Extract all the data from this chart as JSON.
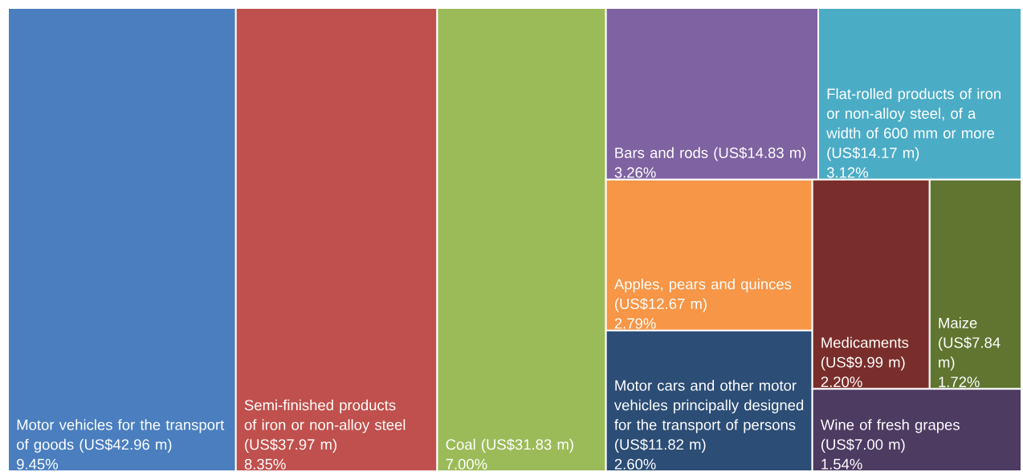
{
  "chart_data": {
    "type": "other",
    "categories": [
      "Motor vehicles for the transport of goods (US$42.96 m)",
      "Semi-finished products of iron or non-alloy steel (US$37.97 m)",
      "Coal (US$31.83 m)",
      "Bars and rods (US$14.83 m)",
      "Flat-rolled products of iron or non-alloy steel, of a width of 600 mm or more (US$14.17 m)",
      "Apples, pears and quinces (US$12.67 m)",
      "Motor cars and other motor vehicles principally designed for the transport of persons (US$11.82 m)",
      "Medicaments (US$9.99 m)",
      "Maize (US$7.84 m)",
      "Wine of fresh grapes (US$7.00 m)"
    ],
    "values": [
      9.45,
      8.35,
      7.0,
      3.26,
      3.12,
      2.79,
      2.6,
      2.2,
      1.72,
      1.54
    ],
    "value_labels": [
      "9.45%",
      "8.35%",
      "7.00%",
      "3.26%",
      "3.12%",
      "2.79%",
      "2.60%",
      "2.20%",
      "1.72%",
      "1.54%"
    ],
    "colors": [
      "#4a7ebf",
      "#c0504d",
      "#9bbb59",
      "#7f62a1",
      "#4bacc6",
      "#f79646",
      "#2c4d75",
      "#7a2e2b",
      "#5f7530",
      "#4d3b62"
    ]
  }
}
